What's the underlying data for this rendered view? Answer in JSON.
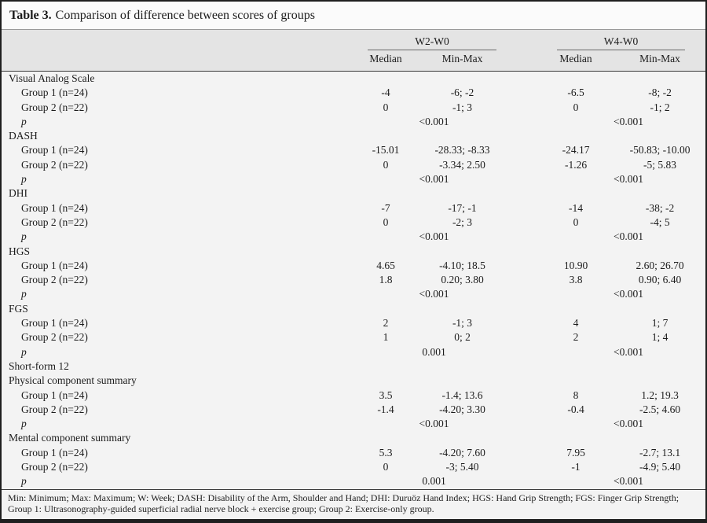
{
  "table": {
    "title_label": "Table 3.",
    "title_text": "Comparison of difference between scores of groups",
    "p_label": "p",
    "colors": {
      "header_band": "#e4e4e4",
      "body_bg": "#f3f3f3",
      "border_dark": "#1f1f1f",
      "rule_dark": "#3a3a3a"
    },
    "column_groups": [
      {
        "label": "W2-W0",
        "columns": [
          "Median",
          "Min-Max"
        ]
      },
      {
        "label": "W4-W0",
        "columns": [
          "Median",
          "Min-Max"
        ]
      }
    ],
    "sections": [
      {
        "name": "Visual Analog Scale",
        "rows": [
          {
            "label": "Group 1 (n=24)",
            "w2_median": "-4",
            "w2_minmax": "-6; -2",
            "w4_median": "-6.5",
            "w4_minmax": "-8; -2"
          },
          {
            "label": "Group 2 (n=22)",
            "w2_median": "0",
            "w2_minmax": "-1; 3",
            "w4_median": "0",
            "w4_minmax": "-1; 2"
          }
        ],
        "p": {
          "w2": "<0.001",
          "w4": "<0.001"
        }
      },
      {
        "name": "DASH",
        "rows": [
          {
            "label": "Group 1 (n=24)",
            "w2_median": "-15.01",
            "w2_minmax": "-28.33; -8.33",
            "w4_median": "-24.17",
            "w4_minmax": "-50.83; -10.00"
          },
          {
            "label": "Group 2 (n=22)",
            "w2_median": "0",
            "w2_minmax": "-3.34; 2.50",
            "w4_median": "-1.26",
            "w4_minmax": "-5; 5.83"
          }
        ],
        "p": {
          "w2": "<0.001",
          "w4": "<0.001"
        }
      },
      {
        "name": "DHI",
        "rows": [
          {
            "label": "Group 1 (n=24)",
            "w2_median": "-7",
            "w2_minmax": "-17; -1",
            "w4_median": "-14",
            "w4_minmax": "-38; -2"
          },
          {
            "label": "Group 2 (n=22)",
            "w2_median": "0",
            "w2_minmax": "-2; 3",
            "w4_median": "0",
            "w4_minmax": "-4; 5"
          }
        ],
        "p": {
          "w2": "<0.001",
          "w4": "<0.001"
        }
      },
      {
        "name": "HGS",
        "rows": [
          {
            "label": "Group 1 (n=24)",
            "w2_median": "4.65",
            "w2_minmax": "-4.10; 18.5",
            "w4_median": "10.90",
            "w4_minmax": "2.60; 26.70"
          },
          {
            "label": "Group 2 (n=22)",
            "w2_median": "1.8",
            "w2_minmax": "0.20; 3.80",
            "w4_median": "3.8",
            "w4_minmax": "0.90; 6.40"
          }
        ],
        "p": {
          "w2": "<0.001",
          "w4": "<0.001"
        }
      },
      {
        "name": "FGS",
        "rows": [
          {
            "label": "Group 1 (n=24)",
            "w2_median": "2",
            "w2_minmax": "-1; 3",
            "w4_median": "4",
            "w4_minmax": "1; 7"
          },
          {
            "label": "Group 2 (n=22)",
            "w2_median": "1",
            "w2_minmax": "0; 2",
            "w4_median": "2",
            "w4_minmax": "1; 4"
          }
        ],
        "p": {
          "w2": "0.001",
          "w4": "<0.001"
        }
      },
      {
        "name": "Short-form 12",
        "rows": [],
        "p": null
      },
      {
        "name": "Physical component summary",
        "rows": [
          {
            "label": "Group 1 (n=24)",
            "w2_median": "3.5",
            "w2_minmax": "-1.4; 13.6",
            "w4_median": "8",
            "w4_minmax": "1.2; 19.3"
          },
          {
            "label": "Group 2 (n=22)",
            "w2_median": "-1.4",
            "w2_minmax": "-4.20; 3.30",
            "w4_median": "-0.4",
            "w4_minmax": "-2.5; 4.60"
          }
        ],
        "p": {
          "w2": "<0.001",
          "w4": "<0.001"
        }
      },
      {
        "name": "Mental component summary",
        "rows": [
          {
            "label": "Group 1 (n=24)",
            "w2_median": "5.3",
            "w2_minmax": "-4.20; 7.60",
            "w4_median": "7.95",
            "w4_minmax": "-2.7; 13.1"
          },
          {
            "label": "Group 2 (n=22)",
            "w2_median": "0",
            "w2_minmax": "-3; 5.40",
            "w4_median": "-1",
            "w4_minmax": "-4.9; 5.40"
          }
        ],
        "p": {
          "w2": "0.001",
          "w4": "<0.001"
        }
      }
    ],
    "footnote": "Min: Minimum; Max: Maximum; W: Week; DASH: Disability of the Arm, Shoulder and Hand; DHI: Duruöz Hand Index; HGS: Hand Grip Strength; FGS: Finger Grip Strength; Group 1: Ultrasonography-guided superficial radial nerve block + exercise group; Group 2: Exercise-only group."
  }
}
